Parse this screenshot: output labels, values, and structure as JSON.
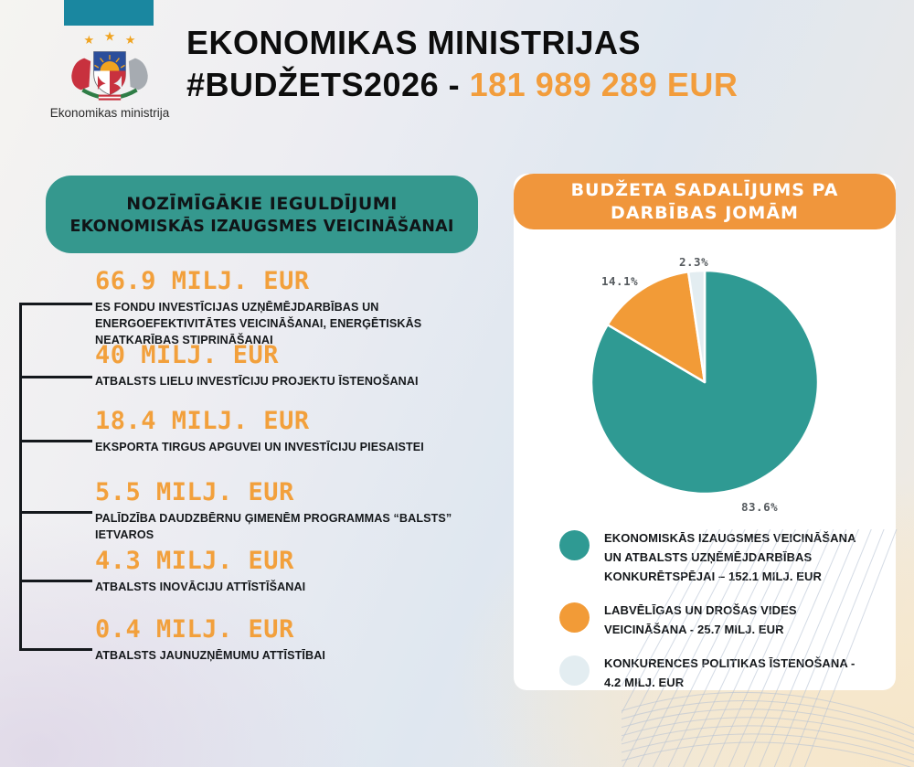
{
  "header": {
    "top_bar_color": "#1a87a0",
    "logo_caption": "Ekonomikas ministrija",
    "title_line1": "EKONOMIKAS MINISTRIJAS",
    "title_line2_prefix": "#BUDŽETS2026 -",
    "title_line2_amount": "181 989 289 EUR",
    "amount_color": "#f29d3c"
  },
  "left_panel": {
    "header_bg": "#35988e",
    "header_lines": [
      "NOZĪMĪGĀKIE IEGULDĪJUMI",
      "EKONOMISKĀS IZAUGSMES VEICINĀŠANAI"
    ],
    "amount_color": "#f2a03c",
    "items": [
      {
        "amount": "66.9 MILJ. EUR",
        "description": "ES FONDU INVESTĪCIJAS UZŅĒMĒJDARBĪBAS UN ENERGOEFEKTIVITĀTES VEICINĀŠANAI, ENERĢĒTISKĀS NEATKARĪBAS STIPRINĀŠANAI"
      },
      {
        "amount": "40 MILJ. EUR",
        "description": "ATBALSTS LIELU INVESTĪCIJU PROJEKTU ĪSTENOŠANAI"
      },
      {
        "amount": "18.4 MILJ. EUR",
        "description": "EKSPORTA TIRGUS APGUVEI UN INVESTĪCIJU PIESAISTEI"
      },
      {
        "amount": "5.5 MILJ. EUR",
        "description": "PALĪDZĪBA DAUDZBĒRNU ĢIMENĒM PROGRAMMAS “BALSTS” IETVAROS"
      },
      {
        "amount": "4.3 MILJ. EUR",
        "description": "ATBALSTS INOVĀCIJU ATTĪSTĪŠANAI"
      },
      {
        "amount": "0.4 MILJ. EUR",
        "description": "ATBALSTS JAUNUZŅĒMUMU ATTĪSTĪBAI"
      }
    ]
  },
  "right_panel": {
    "header_bg": "#f0963c",
    "header_lines": [
      "BUDŽETA SADALĪJUMS PA",
      "DARBĪBAS JOMĀM"
    ]
  },
  "chart_data": {
    "type": "pie",
    "title": "BUDŽETA SADALĪJUMS PA DARBĪBAS JOMĀM",
    "unit": "MILJ. EUR",
    "total_label": "181 989 289 EUR",
    "start_angle_deg": 0,
    "direction": "clockwise",
    "legend_position": "bottom-left",
    "slices": [
      {
        "label": "EKONOMISKĀS IZAUGSMES VEICINĀŠANA UN ATBALSTS UZŅĒMĒJDARBĪBAS KONKURĒTSPĒJAI",
        "legend_text": "EKONOMISKĀS IZAUGSMES VEICINĀŠANA UN ATBALSTS UZŅĒMĒJDARBĪBAS KONKURĒTSPĒJAI – 152.1 MILJ. EUR",
        "value": 152.1,
        "percent": 83.6,
        "percent_label": "83.6%",
        "color": "#2f9a93"
      },
      {
        "label": "LABVĒLĪGAS UN DROŠAS VIDES VEICINĀŠANA",
        "legend_text": "LABVĒLĪGAS UN DROŠAS VIDES VEICINĀŠANA - 25.7 MILJ. EUR",
        "value": 25.7,
        "percent": 14.1,
        "percent_label": "14.1%",
        "color": "#f29b37"
      },
      {
        "label": "KONKURENCES POLITIKAS ĪSTENOŠANA",
        "legend_text": "KONKURENCES POLITIKAS ĪSTENOŠANA - 4.2 MILJ. EUR",
        "value": 4.2,
        "percent": 2.3,
        "percent_label": "2.3%",
        "color": "#e3edf1"
      }
    ]
  }
}
